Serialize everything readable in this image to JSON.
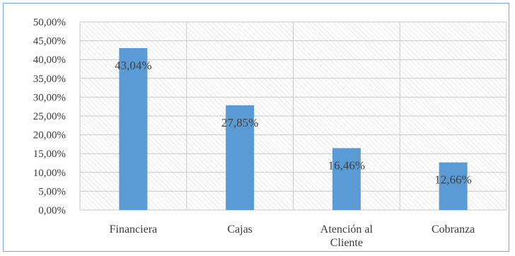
{
  "chart_data": {
    "type": "bar",
    "categories": [
      [
        "Financiera"
      ],
      [
        "Cajas"
      ],
      [
        "Atención al",
        "Cliente"
      ],
      [
        "Cobranza"
      ]
    ],
    "values": [
      43.04,
      27.85,
      16.46,
      12.66
    ],
    "data_labels": [
      "43,04%",
      "27,85%",
      "16,46%",
      "12,66%"
    ],
    "y_ticks": [
      "0,00%",
      "5,00%",
      "10,00%",
      "15,00%",
      "20,00%",
      "25,00%",
      "30,00%",
      "35,00%",
      "40,00%",
      "45,00%",
      "50,00%"
    ],
    "ylim": [
      0,
      50
    ],
    "title": "",
    "xlabel": "",
    "ylabel": "",
    "grid": true,
    "legend": "none",
    "colors": {
      "bar": "#5b9bd5",
      "grid": "#c8c8c8",
      "border": "#7aa7d6"
    }
  }
}
